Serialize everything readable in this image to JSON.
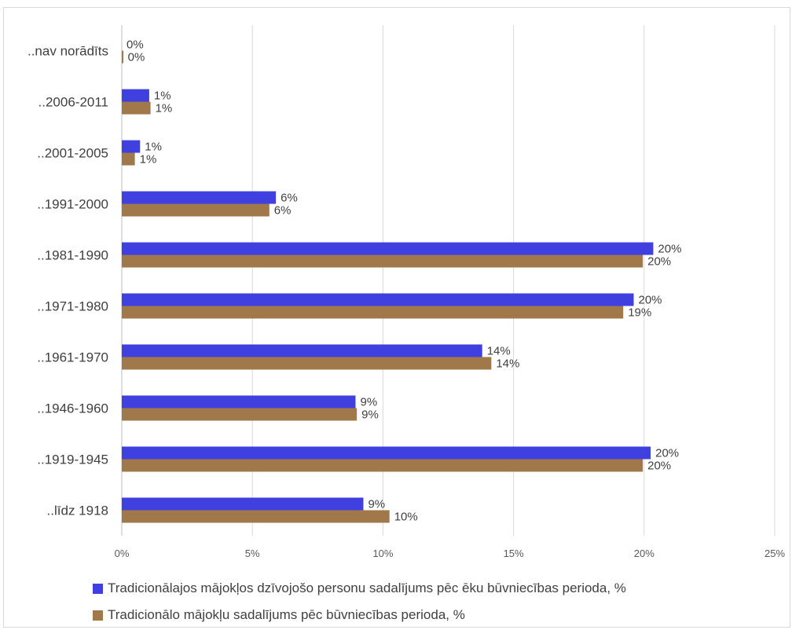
{
  "chart_data": {
    "type": "bar",
    "orientation": "horizontal",
    "categories": [
      "..nav norādīts",
      "..2006-2011",
      "..2001-2005",
      "..1991-2000",
      "..1981-1990",
      "..1971-1980",
      "..1961-1970",
      "..1946-1960",
      "..1919-1945",
      "..līdz 1918"
    ],
    "series": [
      {
        "name": "Tradicionālajos mājokļos dzīvojošo personu sadalījums pēc ēku būvniecības perioda, %",
        "color": "#4040e0",
        "values": [
          0.0,
          1.05,
          0.7,
          5.9,
          20.35,
          19.6,
          13.8,
          8.95,
          20.25,
          9.25
        ],
        "labels": [
          "0%",
          "1%",
          "1%",
          "6%",
          "20%",
          "20%",
          "14%",
          "9%",
          "20%",
          "9%"
        ]
      },
      {
        "name": "Tradicionālo mājokļu sadalījums pēc būvniecības perioda, %",
        "color": "#a0784a",
        "values": [
          0.05,
          1.1,
          0.5,
          5.65,
          19.95,
          19.2,
          14.15,
          9.0,
          19.95,
          10.25
        ],
        "labels": [
          "0%",
          "1%",
          "1%",
          "6%",
          "20%",
          "19%",
          "14%",
          "9%",
          "20%",
          "10%"
        ]
      }
    ],
    "xticks": [
      "0%",
      "5%",
      "10%",
      "15%",
      "20%",
      "25%"
    ],
    "xlim": [
      0,
      25
    ],
    "grid": true,
    "legend_position": "bottom"
  }
}
